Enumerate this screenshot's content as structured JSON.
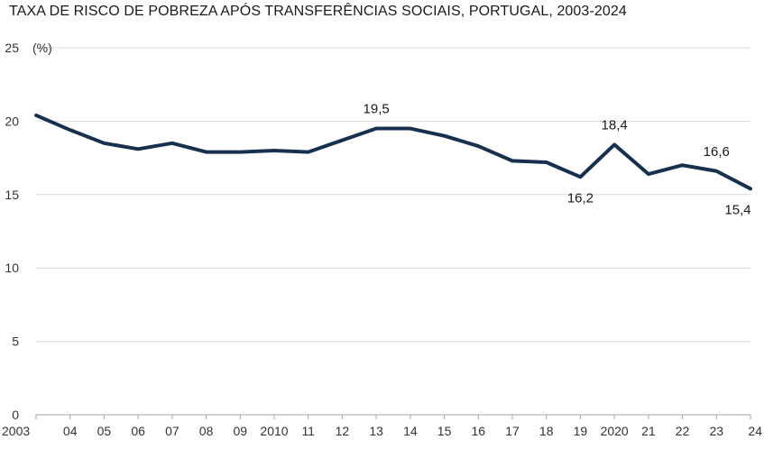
{
  "chart_data": {
    "type": "line",
    "title": "TAXA DE RISCO DE POBREZA APÓS TRANSFERÊNCIAS SOCIAIS, PORTUGAL, 2003-2024",
    "ylabel": "(%)",
    "xlabel": "",
    "ylim": [
      0,
      25
    ],
    "yticks": [
      0,
      5,
      10,
      15,
      20,
      25
    ],
    "grid": true,
    "x": [
      "2003",
      "04",
      "05",
      "06",
      "07",
      "08",
      "09",
      "2010",
      "11",
      "12",
      "13",
      "14",
      "15",
      "16",
      "17",
      "18",
      "19",
      "2020",
      "21",
      "22",
      "23",
      "24"
    ],
    "series": [
      {
        "values": [
          20.4,
          19.4,
          18.5,
          18.1,
          18.5,
          17.9,
          17.9,
          18.0,
          17.9,
          18.7,
          19.5,
          19.5,
          19.0,
          18.3,
          17.3,
          17.2,
          16.2,
          18.4,
          16.4,
          17.0,
          16.6,
          15.4
        ],
        "color": "#17304f"
      }
    ],
    "annotations": [
      {
        "index": 10,
        "text": "19,5",
        "position": "above"
      },
      {
        "index": 16,
        "text": "16,2",
        "position": "below"
      },
      {
        "index": 17,
        "text": "18,4",
        "position": "above"
      },
      {
        "index": 20,
        "text": "16,6",
        "position": "above"
      },
      {
        "index": 21,
        "text": "15,4",
        "position": "below"
      }
    ]
  }
}
